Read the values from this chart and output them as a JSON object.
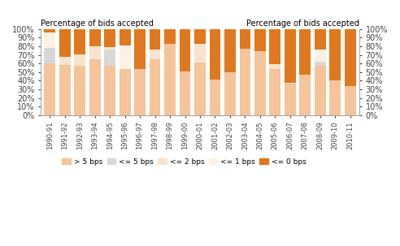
{
  "years": [
    "1990-91",
    "1991-92",
    "1992-93",
    "1993-94",
    "1994-95",
    "1995-96",
    "1996-97",
    "1997-98",
    "1998-99",
    "1999-00",
    "2000-01",
    "2001-02",
    "2002-03",
    "2003-04",
    "2004-05",
    "2005-06",
    "2006-07",
    "2007-08",
    "2008-09",
    "2009-10",
    "2010-11"
  ],
  "gt5": [
    60,
    58,
    57,
    65,
    57,
    54,
    54,
    65,
    83,
    51,
    61,
    41,
    50,
    77,
    74,
    54,
    37,
    47,
    57,
    40,
    34
  ],
  "le5": [
    18,
    0,
    0,
    0,
    19,
    0,
    0,
    0,
    0,
    0,
    0,
    0,
    0,
    0,
    0,
    0,
    0,
    0,
    5,
    0,
    0
  ],
  "le2": [
    0,
    10,
    14,
    15,
    3,
    0,
    0,
    11,
    0,
    0,
    22,
    0,
    0,
    0,
    0,
    5,
    1,
    0,
    0,
    0,
    0
  ],
  "le1": [
    18,
    0,
    0,
    0,
    0,
    27,
    0,
    0,
    0,
    0,
    0,
    0,
    0,
    0,
    0,
    0,
    0,
    0,
    14,
    0,
    0
  ],
  "le0": [
    4,
    32,
    29,
    20,
    21,
    19,
    46,
    24,
    17,
    49,
    17,
    59,
    50,
    23,
    26,
    41,
    62,
    53,
    24,
    60,
    66
  ],
  "color_gt5": "#f5c49a",
  "color_le5": "#d8d8d8",
  "color_le2": "#fae3cc",
  "color_le1": "#fdf1e6",
  "color_le0": "#e07820",
  "title_left": "Percentage of bids accepted",
  "title_right": "Percentage of bids accepted",
  "yticks": [
    0,
    10,
    20,
    30,
    40,
    50,
    60,
    70,
    80,
    90,
    100
  ],
  "legend_labels": [
    "> 5 bps",
    "<= 5 bps",
    "<= 2 bps",
    "<= 1 bps",
    "<= 0 bps"
  ]
}
